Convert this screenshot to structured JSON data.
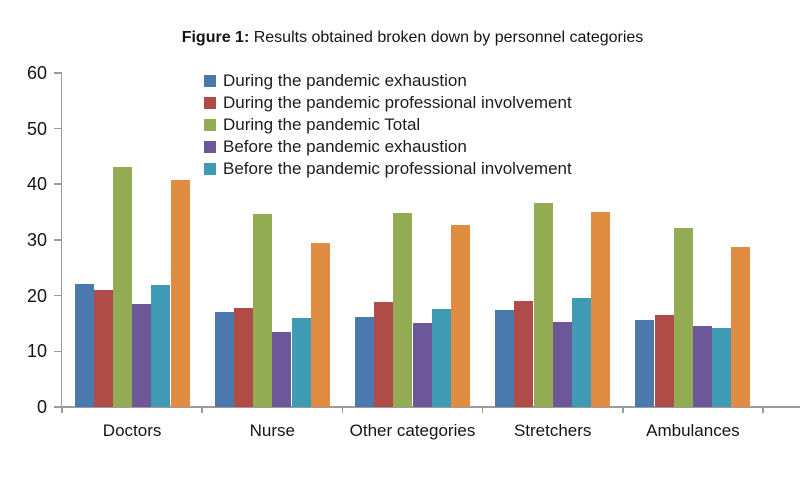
{
  "figure": {
    "title_prefix": "Figure 1:",
    "title_rest": " Results obtained broken down by personnel categories"
  },
  "chart_data": {
    "type": "bar",
    "title": "Figure 1: Results obtained broken down by personnel categories",
    "categories": [
      "Doctors",
      "Nurse",
      "Other categories",
      "Stretchers",
      "Ambulances"
    ],
    "series": [
      {
        "name": "During the pandemic exhaustion",
        "color": "#4B79AE",
        "in_legend": true,
        "values": [
          22.0,
          17.0,
          16.1,
          17.4,
          15.6
        ]
      },
      {
        "name": "During the pandemic professional involvement",
        "color": "#B04C48",
        "in_legend": true,
        "values": [
          21.0,
          17.7,
          18.8,
          19.1,
          16.6
        ]
      },
      {
        "name": "During the pandemic Total",
        "color": "#93AC53",
        "in_legend": true,
        "values": [
          43.0,
          34.6,
          34.9,
          36.6,
          32.2
        ]
      },
      {
        "name": "Before the pandemic exhaustion",
        "color": "#6C5899",
        "in_legend": true,
        "values": [
          18.5,
          13.4,
          15.0,
          15.3,
          14.5
        ]
      },
      {
        "name": "Before the pandemic professional involvement",
        "color": "#3F9BB3",
        "in_legend": true,
        "values": [
          21.9,
          16.0,
          17.6,
          19.6,
          14.1
        ]
      },
      {
        "name": "",
        "color": "#E08C41",
        "in_legend": false,
        "values": [
          40.8,
          29.5,
          32.6,
          35.0,
          28.7
        ]
      }
    ],
    "xlabel": "",
    "ylabel": "",
    "ylim": [
      0,
      60
    ],
    "yticks": [
      0,
      10,
      20,
      30,
      40,
      50,
      60
    ],
    "grid": false,
    "legend_position": "top-left-inside",
    "axis_color": "#9c9c9c",
    "text_color": "#141414",
    "background": "#ffffff"
  }
}
